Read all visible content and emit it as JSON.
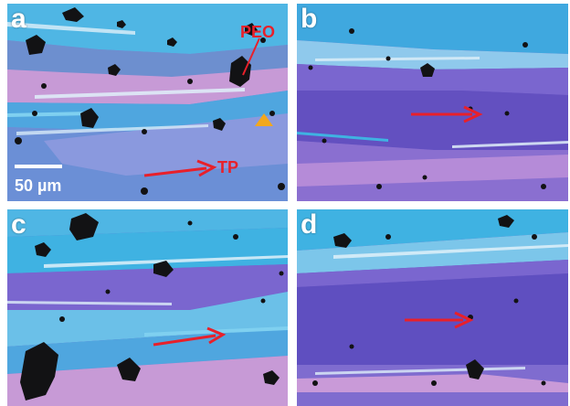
{
  "panels": [
    {
      "id": "a",
      "label": "a"
    },
    {
      "id": "b",
      "label": "b"
    },
    {
      "id": "c",
      "label": "c"
    },
    {
      "id": "d",
      "label": "d"
    }
  ],
  "annotations": {
    "peo_label": "PEO",
    "tp_label": "TP",
    "scale_bar_label": "50 µm"
  },
  "colors": {
    "cyan": "#3fb2e2",
    "light_blue": "#7cc6ea",
    "violet": "#7c6fd6",
    "purple": "#6a56c4",
    "pink": "#c99ad8",
    "white_band": "#e6f3fb",
    "particle": "#121214",
    "arrow": "#e8202a",
    "marker": "#f2a81d"
  }
}
